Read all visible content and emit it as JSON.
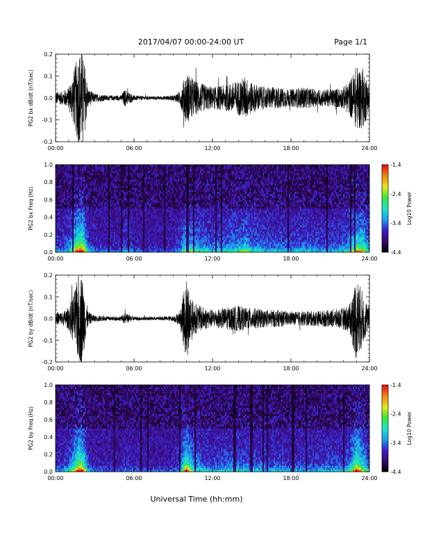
{
  "header": {
    "date_range": "2017/04/07  00:00-24:00 UT",
    "page": "Page 1/1"
  },
  "footer": {
    "xlabel": "Universal Time (hh:mm)"
  },
  "colorbar": {
    "ticks": [
      "-1.4",
      "-2.4",
      "-3.4",
      "-4.4"
    ],
    "label": "Log10 Power",
    "colors": [
      "#000000",
      "#3a0a6e",
      "#3b1fc8",
      "#1aa0f0",
      "#1ee6c8",
      "#3ce63c",
      "#e6e61e",
      "#f08c14",
      "#e61414"
    ]
  },
  "chart_data": [
    {
      "type": "line",
      "panel": "bx_timeseries",
      "ylabel": "PG2 bx dB/dt (nT/sec)",
      "ylim": [
        -0.2,
        0.2
      ],
      "yticks": [
        "-0.2",
        "-0.1",
        "0.0",
        "0.1",
        "0.2"
      ],
      "xlim_hours": [
        0,
        24
      ],
      "xticks": [
        "00:00",
        "06:00",
        "12:00",
        "18:00",
        "24:00"
      ],
      "amplitude_envelope": {
        "hours": [
          0,
          0.5,
          1.0,
          1.5,
          1.75,
          2.0,
          2.25,
          2.5,
          3.0,
          4.0,
          5.0,
          5.3,
          6.0,
          7.0,
          8.0,
          9.0,
          9.5,
          10.0,
          10.5,
          11.0,
          12.0,
          13.0,
          14.0,
          14.5,
          15.0,
          16.0,
          17.0,
          18.0,
          19.0,
          20.0,
          21.0,
          22.0,
          22.5,
          23.0,
          23.5,
          24.0
        ],
        "amplitude": [
          0.03,
          0.03,
          0.05,
          0.15,
          0.22,
          0.22,
          0.15,
          0.04,
          0.02,
          0.012,
          0.012,
          0.04,
          0.012,
          0.008,
          0.008,
          0.012,
          0.03,
          0.12,
          0.09,
          0.07,
          0.05,
          0.06,
          0.08,
          0.1,
          0.07,
          0.05,
          0.05,
          0.04,
          0.05,
          0.04,
          0.04,
          0.05,
          0.08,
          0.15,
          0.14,
          0.06
        ]
      }
    },
    {
      "type": "heatmap",
      "panel": "bx_spectrogram",
      "ylabel": "PG2 bx Freq (Hz)",
      "ylim": [
        0.0,
        1.0
      ],
      "yticks": [
        "0.0",
        "0.2",
        "0.4",
        "0.6",
        "0.8",
        "1.0"
      ],
      "xlim_hours": [
        0,
        24
      ],
      "xticks": [
        "00:00",
        "06:00",
        "12:00",
        "18:00",
        "24:00"
      ],
      "color_range_log10_power": [
        -4.4,
        -1.4
      ]
    },
    {
      "type": "line",
      "panel": "by_timeseries",
      "ylabel": "PG2 by dB/dt (nT/sec)",
      "ylim": [
        -0.2,
        0.2
      ],
      "yticks": [
        "-0.2",
        "-0.1",
        "0.0",
        "0.1",
        "0.2"
      ],
      "xlim_hours": [
        0,
        24
      ],
      "xticks": [
        "00:00",
        "06:00",
        "12:00",
        "18:00",
        "24:00"
      ],
      "amplitude_envelope": {
        "hours": [
          0,
          0.5,
          1.0,
          1.5,
          1.75,
          2.0,
          2.25,
          2.5,
          3.0,
          4.0,
          5.0,
          5.3,
          6.0,
          7.0,
          8.0,
          9.0,
          9.5,
          10.0,
          10.5,
          11.0,
          12.0,
          13.0,
          14.0,
          14.5,
          15.0,
          16.0,
          17.0,
          18.0,
          19.0,
          20.0,
          21.0,
          22.0,
          22.5,
          23.0,
          23.5,
          24.0
        ],
        "amplitude": [
          0.03,
          0.03,
          0.05,
          0.14,
          0.21,
          0.21,
          0.12,
          0.03,
          0.015,
          0.01,
          0.01,
          0.025,
          0.01,
          0.008,
          0.008,
          0.012,
          0.03,
          0.2,
          0.08,
          0.06,
          0.04,
          0.05,
          0.06,
          0.05,
          0.05,
          0.04,
          0.04,
          0.03,
          0.035,
          0.035,
          0.04,
          0.05,
          0.07,
          0.2,
          0.12,
          0.05
        ]
      }
    },
    {
      "type": "heatmap",
      "panel": "by_spectrogram",
      "ylabel": "PG2 by Freq (Hz)",
      "ylim": [
        0.0,
        1.0
      ],
      "yticks": [
        "0.0",
        "0.2",
        "0.4",
        "0.6",
        "0.8",
        "1.0"
      ],
      "xlim_hours": [
        0,
        24
      ],
      "xticks": [
        "00:00",
        "06:00",
        "12:00",
        "18:00",
        "24:00"
      ],
      "color_range_log10_power": [
        -4.4,
        -1.4
      ]
    }
  ]
}
